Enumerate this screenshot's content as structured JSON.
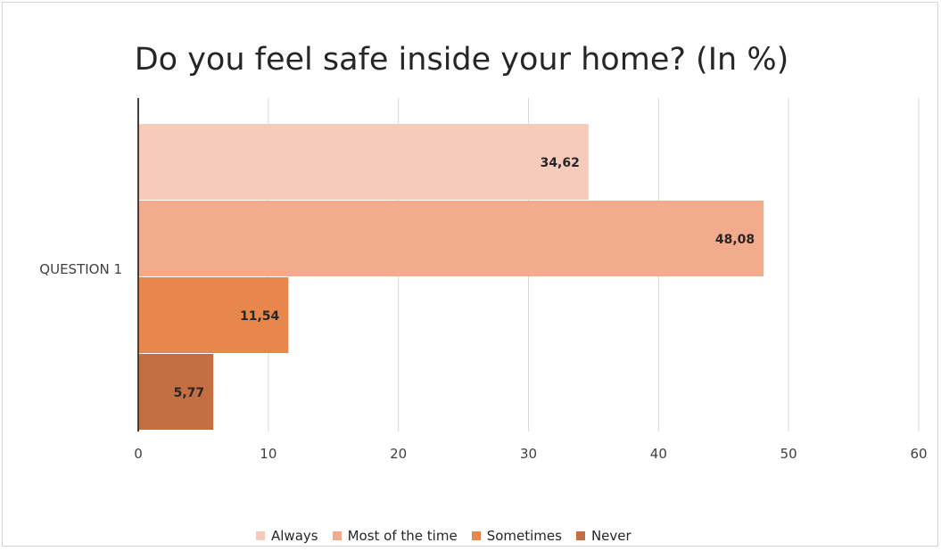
{
  "chart_data": {
    "type": "bar",
    "orientation": "horizontal",
    "title": "Do you feel safe inside your home? (In %)",
    "categories": [
      "QUESTION 1"
    ],
    "series": [
      {
        "name": "Always",
        "values": [
          34.62
        ],
        "label": "34,62",
        "color": "#f7cbbc"
      },
      {
        "name": "Most of the time",
        "values": [
          48.08
        ],
        "label": "48,08",
        "color": "#f3ab8e"
      },
      {
        "name": "Sometimes",
        "values": [
          11.54
        ],
        "label": "11,54",
        "color": "#e8874b"
      },
      {
        "name": "Never",
        "values": [
          5.77
        ],
        "label": "5,77",
        "color": "#c46f43"
      }
    ],
    "xlim": [
      0,
      60
    ],
    "x_ticks": [
      "0",
      "10",
      "20",
      "30",
      "40",
      "50",
      "60"
    ],
    "grid": true,
    "legend_position": "bottom"
  }
}
